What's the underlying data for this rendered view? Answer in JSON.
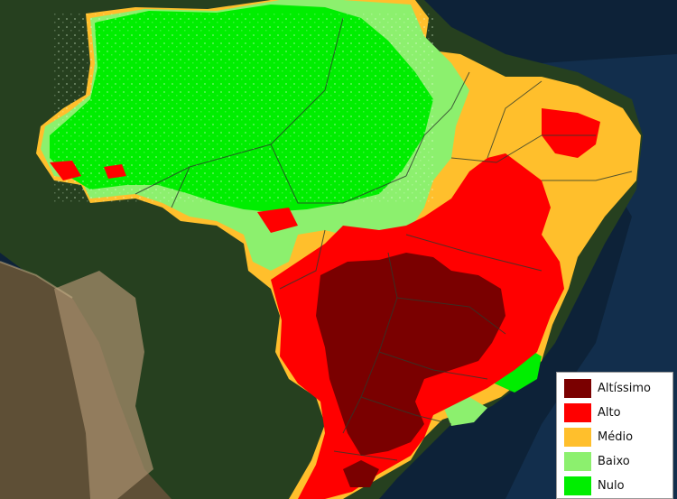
{
  "colors": {
    "ocean": "#0d2238",
    "ocean_shelf": "#16375a",
    "land_forest": "#26401f",
    "land_dry": "#6b5a3e",
    "land_andes": "#a48b6b",
    "nulo": "#00ee00",
    "baixo": "#8cf06e",
    "medio": "#ffbf2c",
    "alto": "#ff0000",
    "altissimo": "#7a0000",
    "borders": "#2c3a2c"
  },
  "legend": {
    "items": [
      {
        "key": "altissimo",
        "label": "Altíssimo",
        "color": "#7a0000"
      },
      {
        "key": "alto",
        "label": "Alto",
        "color": "#ff0000"
      },
      {
        "key": "medio",
        "label": "Médio",
        "color": "#ffbf2c"
      },
      {
        "key": "baixo",
        "label": "Baixo",
        "color": "#8cf06e"
      },
      {
        "key": "nulo",
        "label": "Nulo",
        "color": "#00ee00"
      }
    ]
  }
}
